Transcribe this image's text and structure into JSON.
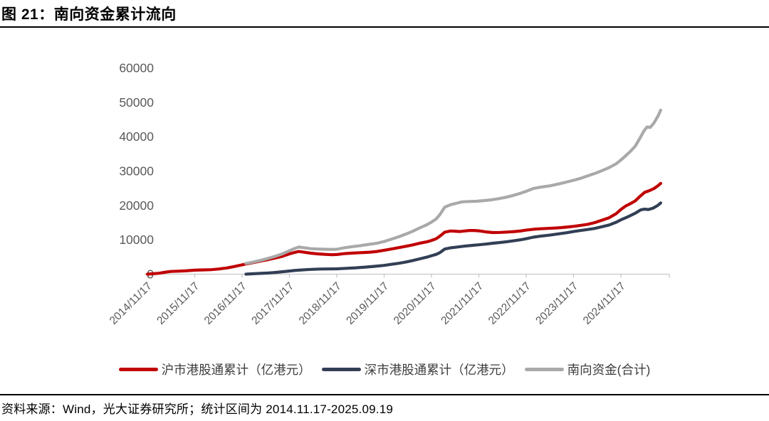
{
  "title": "图 21：南向资金累计流向",
  "footer": {
    "source": "资料来源：Wind，光大证券研究所；统计区间为 2014.11.17-2025.09.19"
  },
  "chart_data": {
    "type": "line",
    "title": "南向资金累计流向",
    "unit": "亿港元",
    "legend_position": "bottom",
    "grid": "off",
    "y_axis": {
      "min": 0,
      "max": 60000,
      "tick_step": 10000,
      "ticks": [
        0,
        10000,
        20000,
        30000,
        40000,
        50000,
        60000
      ]
    },
    "x_axis": {
      "tick_labels": [
        "2014/11/17",
        "2015/11/17",
        "2016/11/17",
        "2017/11/17",
        "2018/11/17",
        "2019/11/17",
        "2020/11/17",
        "2021/11/17",
        "2022/11/17",
        "2023/11/17",
        "2024/11/17"
      ],
      "label_rotation_deg": -45,
      "x_unit": "years since 2014/11/17",
      "x_range": [
        0,
        10.84
      ]
    },
    "style": {
      "axis_line_color": "#c8c8c8",
      "axis_text_color": "#595959",
      "line_width": 4.2
    },
    "series": [
      {
        "name": "沪市港股通累计（亿港元）",
        "color": "#c00000",
        "points": [
          [
            0,
            0
          ],
          [
            0.1,
            100
          ],
          [
            0.25,
            260
          ],
          [
            0.4,
            620
          ],
          [
            0.5,
            780
          ],
          [
            0.65,
            860
          ],
          [
            0.8,
            950
          ],
          [
            1.0,
            1150
          ],
          [
            1.2,
            1250
          ],
          [
            1.35,
            1300
          ],
          [
            1.5,
            1500
          ],
          [
            1.7,
            1850
          ],
          [
            1.85,
            2250
          ],
          [
            2.0,
            2700
          ],
          [
            2.1,
            3000
          ],
          [
            2.25,
            3400
          ],
          [
            2.4,
            3850
          ],
          [
            2.55,
            4250
          ],
          [
            2.7,
            4700
          ],
          [
            2.85,
            5200
          ],
          [
            3.0,
            5900
          ],
          [
            3.1,
            6300
          ],
          [
            3.2,
            6600
          ],
          [
            3.3,
            6400
          ],
          [
            3.45,
            6100
          ],
          [
            3.6,
            5900
          ],
          [
            3.75,
            5750
          ],
          [
            3.9,
            5650
          ],
          [
            4.0,
            5700
          ],
          [
            4.15,
            5950
          ],
          [
            4.3,
            6100
          ],
          [
            4.5,
            6250
          ],
          [
            4.7,
            6400
          ],
          [
            4.85,
            6600
          ],
          [
            5.0,
            6950
          ],
          [
            5.15,
            7300
          ],
          [
            5.3,
            7700
          ],
          [
            5.45,
            8100
          ],
          [
            5.6,
            8500
          ],
          [
            5.75,
            9000
          ],
          [
            5.9,
            9400
          ],
          [
            6.0,
            9800
          ],
          [
            6.1,
            10300
          ],
          [
            6.18,
            11100
          ],
          [
            6.28,
            12200
          ],
          [
            6.4,
            12550
          ],
          [
            6.5,
            12500
          ],
          [
            6.6,
            12400
          ],
          [
            6.7,
            12550
          ],
          [
            6.8,
            12700
          ],
          [
            6.9,
            12700
          ],
          [
            7.0,
            12600
          ],
          [
            7.15,
            12300
          ],
          [
            7.3,
            12100
          ],
          [
            7.45,
            12150
          ],
          [
            7.6,
            12250
          ],
          [
            7.75,
            12400
          ],
          [
            7.9,
            12600
          ],
          [
            8.0,
            12800
          ],
          [
            8.15,
            13050
          ],
          [
            8.3,
            13200
          ],
          [
            8.45,
            13300
          ],
          [
            8.6,
            13400
          ],
          [
            8.75,
            13550
          ],
          [
            8.9,
            13750
          ],
          [
            9.0,
            13900
          ],
          [
            9.15,
            14200
          ],
          [
            9.3,
            14500
          ],
          [
            9.45,
            15000
          ],
          [
            9.6,
            15700
          ],
          [
            9.75,
            16400
          ],
          [
            9.9,
            17600
          ],
          [
            10.0,
            18800
          ],
          [
            10.1,
            19800
          ],
          [
            10.2,
            20500
          ],
          [
            10.3,
            21300
          ],
          [
            10.4,
            22600
          ],
          [
            10.5,
            23800
          ],
          [
            10.6,
            24300
          ],
          [
            10.7,
            24900
          ],
          [
            10.78,
            25700
          ],
          [
            10.84,
            26400
          ]
        ]
      },
      {
        "name": "深市港股通累计（亿港元）",
        "color": "#323f55",
        "points": [
          [
            2.08,
            0
          ],
          [
            2.25,
            120
          ],
          [
            2.4,
            220
          ],
          [
            2.55,
            330
          ],
          [
            2.7,
            500
          ],
          [
            2.85,
            700
          ],
          [
            3.0,
            900
          ],
          [
            3.1,
            1050
          ],
          [
            3.2,
            1150
          ],
          [
            3.35,
            1300
          ],
          [
            3.5,
            1400
          ],
          [
            3.65,
            1480
          ],
          [
            3.8,
            1520
          ],
          [
            4.0,
            1560
          ],
          [
            4.2,
            1700
          ],
          [
            4.4,
            1850
          ],
          [
            4.6,
            2050
          ],
          [
            4.8,
            2280
          ],
          [
            5.0,
            2550
          ],
          [
            5.15,
            2850
          ],
          [
            5.3,
            3150
          ],
          [
            5.45,
            3500
          ],
          [
            5.6,
            3950
          ],
          [
            5.75,
            4450
          ],
          [
            5.9,
            4950
          ],
          [
            6.0,
            5350
          ],
          [
            6.1,
            5750
          ],
          [
            6.18,
            6300
          ],
          [
            6.28,
            7300
          ],
          [
            6.4,
            7650
          ],
          [
            6.55,
            7900
          ],
          [
            6.7,
            8150
          ],
          [
            6.85,
            8350
          ],
          [
            7.0,
            8550
          ],
          [
            7.15,
            8750
          ],
          [
            7.3,
            9000
          ],
          [
            7.45,
            9200
          ],
          [
            7.6,
            9450
          ],
          [
            7.75,
            9750
          ],
          [
            7.9,
            10050
          ],
          [
            8.0,
            10300
          ],
          [
            8.15,
            10750
          ],
          [
            8.3,
            11050
          ],
          [
            8.5,
            11350
          ],
          [
            8.7,
            11750
          ],
          [
            8.85,
            12050
          ],
          [
            9.0,
            12400
          ],
          [
            9.15,
            12700
          ],
          [
            9.3,
            13000
          ],
          [
            9.45,
            13300
          ],
          [
            9.6,
            13800
          ],
          [
            9.75,
            14300
          ],
          [
            9.9,
            15100
          ],
          [
            10.0,
            15800
          ],
          [
            10.15,
            16700
          ],
          [
            10.3,
            17700
          ],
          [
            10.42,
            18700
          ],
          [
            10.5,
            18900
          ],
          [
            10.58,
            18800
          ],
          [
            10.68,
            19200
          ],
          [
            10.78,
            20000
          ],
          [
            10.84,
            20700
          ]
        ]
      },
      {
        "name": "南向资金(合计)",
        "color": "#a9a9a9",
        "points": [
          [
            2.08,
            3100
          ],
          [
            2.25,
            3550
          ],
          [
            2.4,
            4050
          ],
          [
            2.55,
            4600
          ],
          [
            2.7,
            5200
          ],
          [
            2.85,
            5900
          ],
          [
            3.0,
            6800
          ],
          [
            3.1,
            7400
          ],
          [
            3.2,
            7900
          ],
          [
            3.3,
            7700
          ],
          [
            3.45,
            7400
          ],
          [
            3.6,
            7300
          ],
          [
            3.75,
            7250
          ],
          [
            3.9,
            7200
          ],
          [
            4.0,
            7250
          ],
          [
            4.15,
            7650
          ],
          [
            4.3,
            7950
          ],
          [
            4.5,
            8300
          ],
          [
            4.7,
            8700
          ],
          [
            4.85,
            9000
          ],
          [
            5.0,
            9500
          ],
          [
            5.15,
            10150
          ],
          [
            5.3,
            10850
          ],
          [
            5.45,
            11600
          ],
          [
            5.6,
            12450
          ],
          [
            5.75,
            13450
          ],
          [
            5.9,
            14350
          ],
          [
            6.0,
            15150
          ],
          [
            6.1,
            16050
          ],
          [
            6.18,
            17400
          ],
          [
            6.28,
            19500
          ],
          [
            6.4,
            20200
          ],
          [
            6.55,
            20700
          ],
          [
            6.65,
            21050
          ],
          [
            6.8,
            21150
          ],
          [
            6.95,
            21200
          ],
          [
            7.1,
            21400
          ],
          [
            7.25,
            21600
          ],
          [
            7.4,
            21900
          ],
          [
            7.55,
            22300
          ],
          [
            7.7,
            22800
          ],
          [
            7.85,
            23400
          ],
          [
            8.0,
            24100
          ],
          [
            8.15,
            24900
          ],
          [
            8.3,
            25300
          ],
          [
            8.5,
            25700
          ],
          [
            8.7,
            26300
          ],
          [
            8.85,
            26800
          ],
          [
            9.0,
            27300
          ],
          [
            9.15,
            27900
          ],
          [
            9.3,
            28600
          ],
          [
            9.45,
            29300
          ],
          [
            9.6,
            30100
          ],
          [
            9.75,
            31000
          ],
          [
            9.9,
            32100
          ],
          [
            10.0,
            33200
          ],
          [
            10.1,
            34400
          ],
          [
            10.2,
            35700
          ],
          [
            10.3,
            37200
          ],
          [
            10.4,
            39500
          ],
          [
            10.48,
            41500
          ],
          [
            10.55,
            42800
          ],
          [
            10.62,
            42700
          ],
          [
            10.7,
            44000
          ],
          [
            10.78,
            45900
          ],
          [
            10.84,
            47700
          ]
        ]
      }
    ]
  }
}
